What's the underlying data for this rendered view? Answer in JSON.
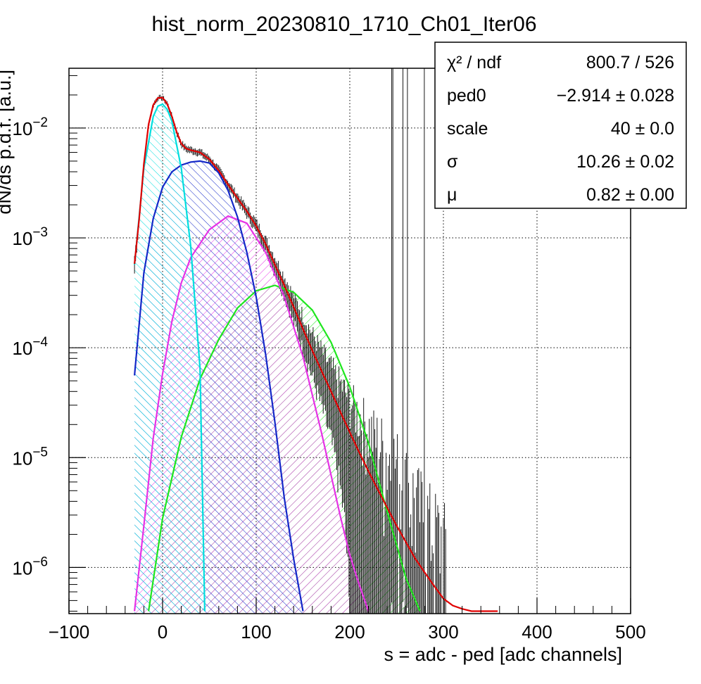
{
  "chart_data": {
    "type": "line",
    "title": "hist_norm_20230810_1710_Ch01_Iter06",
    "xlabel": "s = adc - ped [adc channels]",
    "ylabel": "dN/ds p.d.f. [a.u.]",
    "xlim": [
      -100,
      500
    ],
    "ylim": [
      3.8e-07,
      0.035
    ],
    "yscale": "log",
    "grid": true,
    "x_ticks": [
      {
        "value": -100,
        "label": "−100"
      },
      {
        "value": 0,
        "label": "0"
      },
      {
        "value": 100,
        "label": "100"
      },
      {
        "value": 200,
        "label": "200"
      },
      {
        "value": 300,
        "label": "300"
      },
      {
        "value": 400,
        "label": "400"
      },
      {
        "value": 500,
        "label": "500"
      }
    ],
    "y_ticks": [
      {
        "value": 0.01,
        "base": "10",
        "exp": "−2"
      },
      {
        "value": 0.001,
        "base": "10",
        "exp": "−3"
      },
      {
        "value": 0.0001,
        "base": "10",
        "exp": "−4"
      },
      {
        "value": 1e-05,
        "base": "10",
        "exp": "−5"
      },
      {
        "value": 1e-06,
        "base": "10",
        "exp": "−6"
      }
    ],
    "stats_box": {
      "position": "top-right",
      "rows": [
        {
          "label": "χ² / ndf",
          "value": "800.7 / 526"
        },
        {
          "label": "ped0",
          "value": "−2.914 ± 0.028"
        },
        {
          "label": "scale",
          "value": "40 ± 0.0"
        },
        {
          "label": "σ",
          "value": "10.26 ± 0.02"
        },
        {
          "label": "μ",
          "value": "0.82 ± 0.00"
        }
      ]
    },
    "series": [
      {
        "color": "#00dede",
        "fill": "hatch",
        "x": [
          -30,
          -20,
          -10,
          -5,
          0,
          5,
          10,
          20,
          30,
          40,
          45
        ],
        "y": [
          0.00057,
          0.0043,
          0.0127,
          0.0158,
          0.0165,
          0.0148,
          0.0115,
          0.0043,
          0.00085,
          6.5e-05,
          4e-07
        ]
      },
      {
        "color": "#1428c8",
        "fill": "hatch",
        "x": [
          -30,
          -20,
          -10,
          0,
          10,
          20,
          30,
          40,
          50,
          60,
          70,
          80,
          90,
          100,
          110,
          120,
          130,
          140,
          150
        ],
        "y": [
          5.6e-05,
          0.00048,
          0.0015,
          0.0029,
          0.004,
          0.0046,
          0.0049,
          0.005,
          0.0048,
          0.0039,
          0.0027,
          0.00155,
          0.00074,
          0.00029,
          8.8e-05,
          2.1e-05,
          4.3e-06,
          1.2e-06,
          4e-07
        ]
      },
      {
        "color": "#e632e6",
        "fill": "hatch",
        "x": [
          -30,
          -20,
          -10,
          0,
          10,
          20,
          30,
          50,
          70,
          90,
          110,
          130,
          150,
          170,
          190,
          200,
          210,
          220
        ],
        "y": [
          4e-07,
          2.4e-06,
          1.5e-05,
          5.8e-05,
          0.000175,
          0.00039,
          0.00066,
          0.00119,
          0.00158,
          0.00136,
          0.00074,
          0.00029,
          8.3e-05,
          1.65e-05,
          2.9e-06,
          1.3e-06,
          7e-07,
          4e-07
        ]
      },
      {
        "color": "#1fe61f",
        "fill": "hatch",
        "x": [
          -15,
          0,
          20,
          40,
          60,
          80,
          100,
          120,
          140,
          160,
          180,
          200,
          220,
          240,
          260,
          275
        ],
        "y": [
          4e-07,
          2.8e-06,
          1.54e-05,
          5.2e-05,
          0.000119,
          0.00023,
          0.00033,
          0.00037,
          0.00032,
          0.00022,
          0.000112,
          4.4e-05,
          1.35e-05,
          3.2e-06,
          8e-07,
          4e-07
        ]
      },
      {
        "color": "#e00000",
        "fill": "none",
        "x": [
          -30,
          -25,
          -20,
          -15,
          -10,
          -5,
          0,
          5,
          10,
          15,
          20,
          25,
          30,
          40,
          50,
          60,
          70,
          80,
          90,
          100,
          110,
          120,
          130,
          140,
          150,
          160,
          170,
          180,
          190,
          200,
          210,
          220,
          230,
          240,
          250,
          260,
          270,
          280,
          290,
          300,
          310,
          320,
          330,
          340,
          350,
          358
        ],
        "y": [
          0.00058,
          0.0015,
          0.0047,
          0.0108,
          0.0162,
          0.0188,
          0.0189,
          0.0166,
          0.0127,
          0.0092,
          0.0072,
          0.0065,
          0.0063,
          0.006,
          0.0052,
          0.0041,
          0.00305,
          0.0023,
          0.00175,
          0.00128,
          0.00088,
          0.00057,
          0.00037,
          0.000235,
          0.000148,
          9.4e-05,
          6.1e-05,
          4e-05,
          2.6e-05,
          1.7e-05,
          1.12e-05,
          7.5e-06,
          5.1e-06,
          3.5e-06,
          2.4e-06,
          1.7e-06,
          1.2e-06,
          9e-07,
          6.8e-07,
          5.2e-07,
          4.5e-07,
          4.2e-07,
          4e-07,
          4e-07,
          4e-07,
          4e-07
        ]
      }
    ]
  }
}
